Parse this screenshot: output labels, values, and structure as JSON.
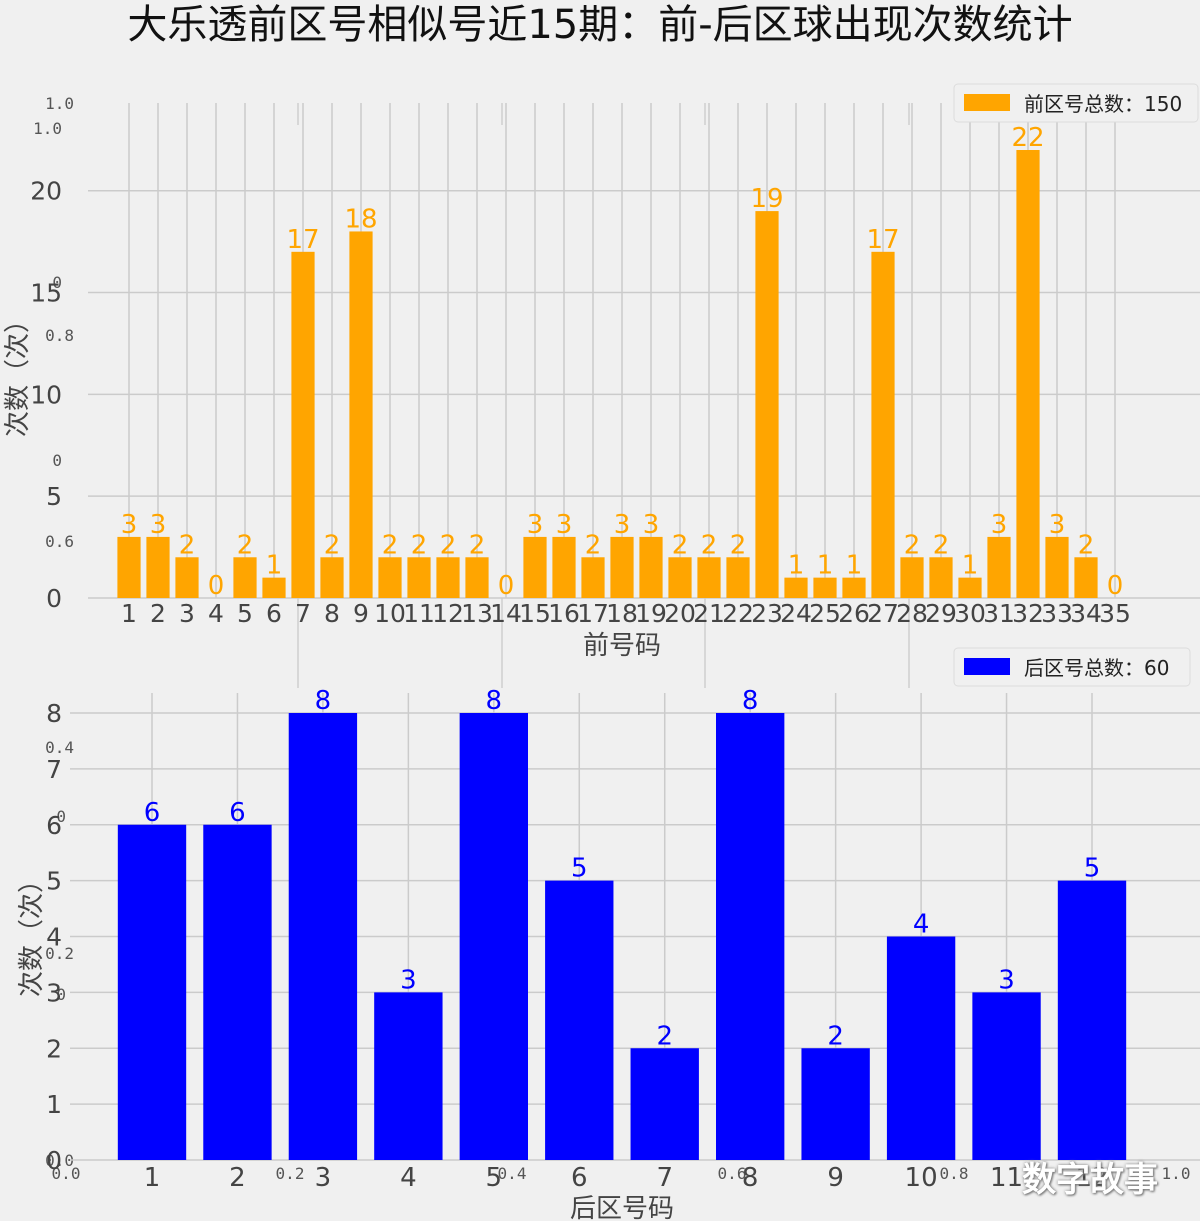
{
  "page": {
    "title": "大乐透前区号相似号近15期：前-后区球出现次数统计",
    "watermark": "数字故事"
  },
  "chart_data": [
    {
      "type": "bar",
      "title": "",
      "xlabel": "前号码",
      "ylabel": "次数（次）",
      "ylim": [
        0,
        22
      ],
      "yticks": [
        0,
        5,
        10,
        15,
        20
      ],
      "categories": [
        "1",
        "2",
        "3",
        "4",
        "5",
        "6",
        "7",
        "8",
        "9",
        "10",
        "11",
        "12",
        "13",
        "14",
        "15",
        "16",
        "17",
        "18",
        "19",
        "20",
        "21",
        "22",
        "23",
        "24",
        "25",
        "26",
        "27",
        "28",
        "29",
        "30",
        "31",
        "32",
        "33",
        "34",
        "35"
      ],
      "series": [
        {
          "name": "前区号总数：150",
          "color": "#ffa500",
          "values": [
            3,
            3,
            2,
            0,
            2,
            1,
            17,
            2,
            18,
            2,
            2,
            2,
            2,
            0,
            3,
            3,
            2,
            3,
            3,
            2,
            2,
            2,
            19,
            1,
            1,
            1,
            17,
            2,
            2,
            1,
            3,
            22,
            3,
            2,
            0
          ]
        }
      ],
      "grid": true,
      "legend": "top-right"
    },
    {
      "type": "bar",
      "title": "",
      "xlabel": "后区号码",
      "ylabel": "次数（次）",
      "ylim": [
        0,
        8
      ],
      "yticks": [
        0,
        1,
        2,
        3,
        4,
        5,
        6,
        7,
        8
      ],
      "categories": [
        "1",
        "2",
        "3",
        "4",
        "5",
        "6",
        "7",
        "8",
        "9",
        "10",
        "11",
        "12"
      ],
      "series": [
        {
          "name": "后区号总数：60",
          "color": "#0000ff",
          "values": [
            6,
            6,
            8,
            3,
            8,
            5,
            2,
            8,
            2,
            4,
            3,
            5
          ]
        }
      ],
      "grid": true,
      "legend": "top-right"
    }
  ],
  "background_axis": {
    "yticks": [
      "1.0",
      "0.8",
      "0.6",
      "0.4",
      "0.2",
      "0.0"
    ],
    "xticks": [
      "0.0",
      "0.2",
      "0.4",
      "0.6",
      "0.8",
      "1.0"
    ],
    "inner_yticks_top": [
      "1.0",
      "0",
      "0"
    ],
    "inner_yticks_bottom": [
      "0",
      "0"
    ]
  }
}
